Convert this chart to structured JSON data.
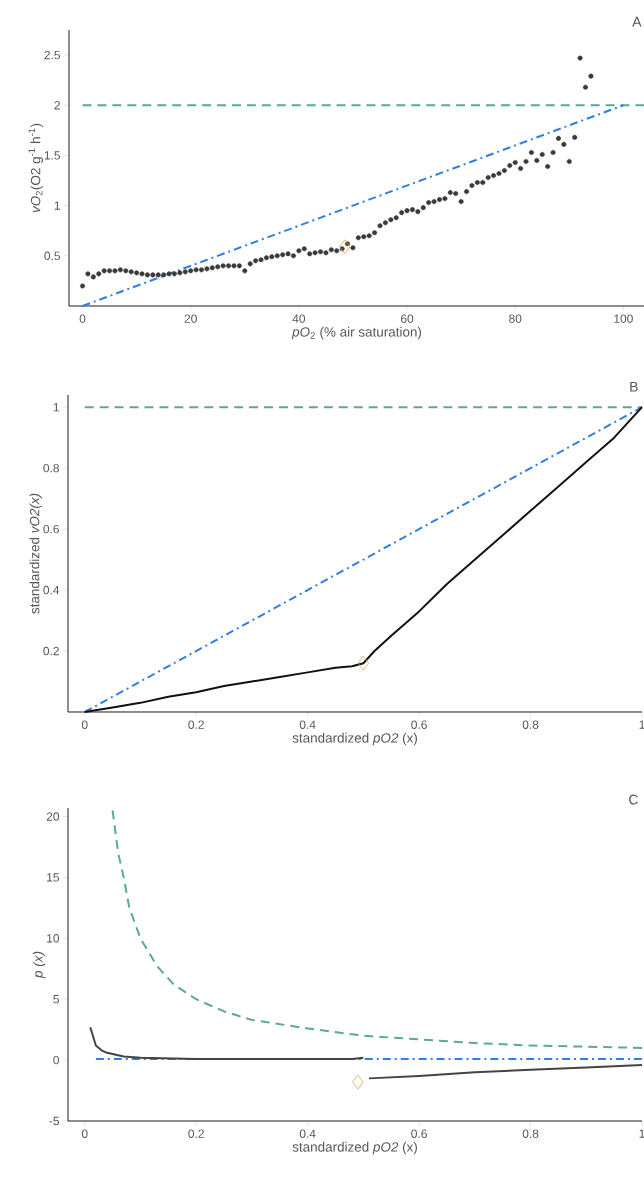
{
  "chart_data": [
    {
      "type": "scatter",
      "xlabel": "*pO*$_{2}$ (% air saturation)",
      "ylabel": "*vO*$_{2}$(O2  g$^{-1}$ h$^{-1}$)",
      "xlim": [
        -2.5,
        104
      ],
      "ylim": [
        0,
        2.75
      ],
      "xticks": [
        0,
        20,
        40,
        60,
        80,
        100
      ],
      "yticks": [
        0.5,
        1,
        1.5,
        2,
        2.5
      ],
      "annotations": [
        "A"
      ],
      "ref_lines": [
        {
          "axis": "y",
          "value": 2,
          "color": "#5aa89a",
          "line_style": "dashed"
        }
      ],
      "series": [
        {
          "marker": "circle",
          "color": "#3a3a3a",
          "x": [
            0,
            1,
            2,
            3,
            4,
            5,
            6,
            7,
            8,
            9,
            10,
            11,
            12,
            13,
            14,
            15,
            16,
            17,
            18,
            19,
            20,
            21,
            22,
            23,
            24,
            25,
            26,
            27,
            28,
            29,
            30,
            31,
            32,
            33,
            34,
            35,
            36,
            37,
            38,
            39,
            40,
            41,
            42,
            43,
            44,
            45,
            46,
            47,
            48,
            49,
            50,
            51,
            52,
            53,
            54,
            55,
            56,
            57,
            58,
            59,
            60,
            61,
            62,
            63,
            64,
            65,
            66,
            67,
            68,
            69,
            70,
            71,
            72,
            73,
            74,
            75,
            76,
            77,
            78,
            79,
            80,
            81,
            82,
            83,
            84,
            85,
            86,
            87,
            88,
            89,
            90,
            91,
            92,
            93,
            94
          ],
          "values": [
            0.2,
            0.32,
            0.29,
            0.32,
            0.35,
            0.35,
            0.35,
            0.36,
            0.35,
            0.34,
            0.33,
            0.32,
            0.31,
            0.31,
            0.31,
            0.31,
            0.32,
            0.32,
            0.33,
            0.34,
            0.35,
            0.36,
            0.36,
            0.37,
            0.38,
            0.39,
            0.4,
            0.4,
            0.4,
            0.4,
            0.35,
            0.42,
            0.45,
            0.46,
            0.48,
            0.49,
            0.5,
            0.51,
            0.52,
            0.5,
            0.55,
            0.57,
            0.52,
            0.53,
            0.54,
            0.53,
            0.56,
            0.55,
            0.57,
            0.62,
            0.58,
            0.68,
            0.69,
            0.7,
            0.73,
            0.8,
            0.83,
            0.86,
            0.88,
            0.93,
            0.95,
            0.96,
            0.94,
            0.98,
            1.03,
            1.04,
            1.06,
            1.07,
            1.13,
            1.12,
            1.04,
            1.14,
            1.2,
            1.23,
            1.23,
            1.28,
            1.3,
            1.32,
            1.35,
            1.4,
            1.43,
            1.37,
            1.44,
            1.53,
            1.45,
            1.51,
            1.39,
            1.53,
            1.67,
            1.61,
            1.44,
            1.68,
            2.47,
            2.18,
            2.29
          ]
        },
        {
          "type": "line",
          "line_style": "dashdot",
          "color": "#2f7fe0",
          "x": [
            0,
            100
          ],
          "values": [
            0,
            2
          ]
        },
        {
          "marker": "diamond",
          "color": "#e8a54b",
          "x": [
            48.5
          ],
          "values": [
            0.59
          ]
        }
      ]
    },
    {
      "type": "line",
      "xlabel": "standardized *pO2* (x)",
      "ylabel": "standardized *vO2(x)*",
      "xlim": [
        -0.03,
        1
      ],
      "ylim": [
        0,
        1.04
      ],
      "xticks": [
        0,
        0.2,
        0.4,
        0.6,
        0.8,
        1
      ],
      "yticks": [
        0.2,
        0.4,
        0.6,
        0.8,
        1
      ],
      "annotations": [
        "B"
      ],
      "ref_lines": [
        {
          "axis": "y",
          "value": 1,
          "color": "#5aa89a",
          "line_style": "dashed"
        }
      ],
      "series": [
        {
          "line_style": "dashdot",
          "color": "#2f7fe0",
          "x": [
            0,
            1
          ],
          "values": [
            0,
            1
          ]
        },
        {
          "line_style": "solid",
          "color": "#111111",
          "x": [
            0,
            0.05,
            0.1,
            0.15,
            0.2,
            0.25,
            0.3,
            0.35,
            0.4,
            0.45,
            0.48,
            0.5,
            0.52,
            0.55,
            0.6,
            0.65,
            0.7,
            0.75,
            0.8,
            0.85,
            0.9,
            0.95,
            1
          ],
          "values": [
            0,
            0.015,
            0.03,
            0.05,
            0.065,
            0.085,
            0.1,
            0.115,
            0.13,
            0.145,
            0.15,
            0.16,
            0.2,
            0.25,
            0.33,
            0.42,
            0.5,
            0.58,
            0.66,
            0.74,
            0.82,
            0.9,
            1
          ]
        },
        {
          "type": "scatter",
          "marker": "diamond",
          "color": "#e8a54b",
          "x": [
            0.5
          ],
          "values": [
            0.16
          ]
        }
      ]
    },
    {
      "type": "line",
      "xlabel": "standardized *pO2* (x)",
      "ylabel": "*p (x)*",
      "xlim": [
        -0.03,
        1
      ],
      "ylim": [
        -5,
        20.7
      ],
      "xticks": [
        0,
        0.2,
        0.4,
        0.6,
        0.8,
        1
      ],
      "yticks": [
        -5,
        0,
        5,
        10,
        15,
        20
      ],
      "annotations": [
        "C"
      ],
      "series": [
        {
          "line_style": "dashed",
          "color": "#5aa89a",
          "x": [
            0.05,
            0.06,
            0.07,
            0.08,
            0.1,
            0.13,
            0.16,
            0.2,
            0.25,
            0.3,
            0.4,
            0.5,
            0.6,
            0.7,
            0.8,
            0.9,
            1
          ],
          "values": [
            20.5,
            17,
            15,
            12.5,
            10,
            7.7,
            6.2,
            5,
            4,
            3.3,
            2.6,
            2,
            1.7,
            1.4,
            1.2,
            1.1,
            1
          ]
        },
        {
          "line_style": "dashdot",
          "color": "#2f7fe0",
          "x": [
            0.02,
            1
          ],
          "values": [
            0.1,
            0.1
          ]
        },
        {
          "line_style": "solid",
          "color": "#444444",
          "x": [
            0.01,
            0.02,
            0.03,
            0.04,
            0.07,
            0.1,
            0.2,
            0.3,
            0.4,
            0.48,
            0.5,
            0.505,
            0.51,
            0.6,
            0.7,
            0.8,
            0.9,
            1
          ],
          "values": [
            2.7,
            1.2,
            0.8,
            0.6,
            0.3,
            0.2,
            0.1,
            0.1,
            0.1,
            0.1,
            0.2,
            null,
            -1.5,
            -1.3,
            -1,
            -0.8,
            -0.6,
            -0.4
          ]
        },
        {
          "type": "scatter",
          "marker": "diamond",
          "color": "#e8a54b",
          "x": [
            0.49
          ],
          "values": [
            -1.8
          ]
        }
      ]
    }
  ]
}
